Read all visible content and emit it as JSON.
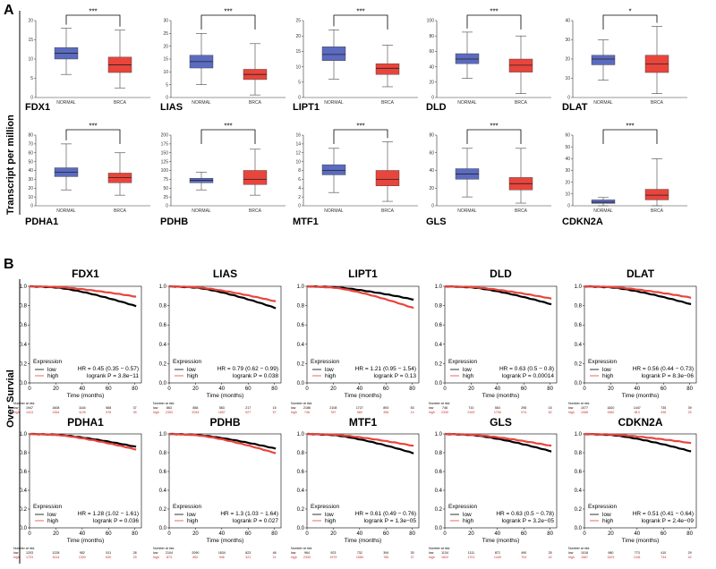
{
  "labels": {
    "panel_a": "A",
    "panel_b": "B",
    "ylabel_a": "Transcript per million",
    "ylabel_b": "Over Survial"
  },
  "colors": {
    "normal": "#5b6bbf",
    "brca": "#e8453c",
    "km_low": "#000000",
    "km_high": "#e8453c"
  },
  "chart_data": [
    {
      "type": "box",
      "panel": "A",
      "categories": [
        "NORMAL",
        "BRCA"
      ],
      "plots": [
        {
          "gene": "FDX1",
          "sig": "***",
          "yticks": [
            0,
            5,
            10,
            15,
            20
          ],
          "ylim": [
            0,
            20
          ],
          "boxes": [
            {
              "min": 6,
              "q1": 10,
              "median": 11.5,
              "q3": 13,
              "max": 18
            },
            {
              "min": 2.5,
              "q1": 6.5,
              "median": 8.5,
              "q3": 10.5,
              "max": 17.5
            }
          ]
        },
        {
          "gene": "LIAS",
          "sig": "***",
          "yticks": [
            0,
            5,
            10,
            15,
            20,
            25,
            30
          ],
          "ylim": [
            0,
            30
          ],
          "boxes": [
            {
              "min": 5,
              "q1": 11.5,
              "median": 14,
              "q3": 16.5,
              "max": 25
            },
            {
              "min": 1,
              "q1": 7,
              "median": 9,
              "q3": 11,
              "max": 21
            }
          ]
        },
        {
          "gene": "LIPT1",
          "sig": "***",
          "yticks": [
            0,
            5,
            10,
            15,
            20,
            25
          ],
          "ylim": [
            0,
            25
          ],
          "boxes": [
            {
              "min": 6,
              "q1": 12,
              "median": 14,
              "q3": 16.5,
              "max": 22
            },
            {
              "min": 3.5,
              "q1": 7.5,
              "median": 9.5,
              "q3": 11,
              "max": 17
            }
          ]
        },
        {
          "gene": "DLD",
          "sig": "***",
          "yticks": [
            0,
            20,
            40,
            60,
            80,
            100
          ],
          "ylim": [
            0,
            100
          ],
          "boxes": [
            {
              "min": 25,
              "q1": 44,
              "median": 50,
              "q3": 57,
              "max": 85
            },
            {
              "min": 5,
              "q1": 33,
              "median": 42,
              "q3": 50,
              "max": 80
            }
          ]
        },
        {
          "gene": "DLAT",
          "sig": "*",
          "yticks": [
            0,
            10,
            20,
            30,
            40
          ],
          "ylim": [
            0,
            40
          ],
          "boxes": [
            {
              "min": 9,
              "q1": 17,
              "median": 20,
              "q3": 22,
              "max": 30
            },
            {
              "min": 2,
              "q1": 13,
              "median": 17.5,
              "q3": 22,
              "max": 37
            }
          ]
        },
        {
          "gene": "PDHA1",
          "sig": "***",
          "yticks": [
            0,
            10,
            20,
            30,
            40,
            50,
            60,
            70,
            80
          ],
          "ylim": [
            0,
            80
          ],
          "boxes": [
            {
              "min": 18,
              "q1": 33,
              "median": 38,
              "q3": 43,
              "max": 70
            },
            {
              "min": 12,
              "q1": 26,
              "median": 32,
              "q3": 37,
              "max": 60
            }
          ]
        },
        {
          "gene": "PDHB",
          "sig": "***",
          "yticks": [
            0,
            25,
            50,
            75,
            100,
            125,
            150,
            175,
            200
          ],
          "ylim": [
            0,
            200
          ],
          "boxes": [
            {
              "min": 45,
              "q1": 65,
              "median": 72,
              "q3": 78,
              "max": 95
            },
            {
              "min": 30,
              "q1": 60,
              "median": 75,
              "q3": 100,
              "max": 160
            }
          ]
        },
        {
          "gene": "MTF1",
          "sig": "***",
          "yticks": [
            0,
            2,
            4,
            6,
            8,
            10,
            12,
            14,
            16
          ],
          "ylim": [
            0,
            16
          ],
          "boxes": [
            {
              "min": 3,
              "q1": 7,
              "median": 8,
              "q3": 9.3,
              "max": 13
            },
            {
              "min": 1,
              "q1": 4.5,
              "median": 6,
              "q3": 8,
              "max": 14.5
            }
          ]
        },
        {
          "gene": "GLS",
          "sig": "***",
          "yticks": [
            0,
            20,
            40,
            60,
            80
          ],
          "ylim": [
            0,
            80
          ],
          "boxes": [
            {
              "min": 10,
              "q1": 30,
              "median": 36,
              "q3": 42,
              "max": 65
            },
            {
              "min": 3,
              "q1": 18,
              "median": 25,
              "q3": 32,
              "max": 65
            }
          ]
        },
        {
          "gene": "CDKN2A",
          "sig": "***",
          "yticks": [
            0,
            10,
            20,
            30,
            40,
            50,
            60
          ],
          "ylim": [
            0,
            60
          ],
          "boxes": [
            {
              "min": 0,
              "q1": 2,
              "median": 3,
              "q3": 5,
              "max": 7
            },
            {
              "min": 0,
              "q1": 5,
              "median": 9,
              "q3": 14,
              "max": 40
            }
          ]
        }
      ]
    },
    {
      "type": "line",
      "panel": "B",
      "xlabel": "Time (months)",
      "xticks": [
        0,
        20,
        40,
        60,
        80
      ],
      "yticks": [
        "0.0",
        "0.2",
        "0.4",
        "0.6",
        "0.8",
        "1.0"
      ],
      "xlim": [
        0,
        85
      ],
      "ylim": [
        0,
        1
      ],
      "legend_title": "Expression",
      "series_names": [
        "low",
        "high"
      ],
      "risk_header": "Number at risk",
      "plots": [
        {
          "gene": "FDX1",
          "hr": "HR = 0.45 (0.35 − 0.57)",
          "logrank": "logrank P = 3.8e−11",
          "low_end": 0.79,
          "high_end": 0.89,
          "risk_low": [
            "1947",
            "1608",
            "1164",
            "568",
            "37"
          ],
          "risk_high": [
            "1413",
            "1364",
            "1126",
            "576",
            "35"
          ]
        },
        {
          "gene": "LIAS",
          "hr": "HR = 0.79 (0.62 − 0.99)",
          "logrank": "logrank P = 0.038",
          "low_end": 0.77,
          "high_end": 0.84,
          "risk_low": [
            "863",
            "858",
            "583",
            "217",
            "15"
          ],
          "risk_high": [
            "2353",
            "2044",
            "1657",
            "927",
            "57"
          ]
        },
        {
          "gene": "LIPT1",
          "hr": "HR = 1.21 (0.95 − 1.54)",
          "logrank": "logrank P = 0.13",
          "low_end": 0.86,
          "high_end": 0.77,
          "risk_low": [
            "2186",
            "2108",
            "1727",
            "893",
            "53"
          ],
          "risk_high": [
            "746",
            "787",
            "580",
            "356",
            "14"
          ]
        },
        {
          "gene": "DLD",
          "hr": "HR = 0.63 (0.5 − 0.8)",
          "logrank": "logrank P = 0.00014",
          "low_end": 0.81,
          "high_end": 0.87,
          "risk_low": [
            "746",
            "710",
            "554",
            "295",
            "15"
          ],
          "risk_high": [
            "2330",
            "2163",
            "1755",
            "974",
            "62"
          ]
        },
        {
          "gene": "DLAT",
          "hr": "HR = 0.56 (0.44 − 0.73)",
          "logrank": "logrank P = 8.3e−06",
          "low_end": 0.81,
          "high_end": 0.88,
          "risk_low": [
            "1077",
            "1820",
            "1447",
            "735",
            "39"
          ],
          "risk_high": [
            "1068",
            "1582",
            "813",
            "436",
            "25"
          ]
        },
        {
          "gene": "PDHA1",
          "hr": "HR = 1.28 (1.02 − 1.61)",
          "logrank": "logrank P = 0.036",
          "low_end": 0.86,
          "high_end": 0.83,
          "risk_low": [
            "1203",
            "1228",
            "952",
            "511",
            "28"
          ],
          "risk_high": [
            "1723",
            "1614",
            "1300",
            "630",
            "39"
          ]
        },
        {
          "gene": "PDHB",
          "hr": "HR = 1.3 (1.03 − 1.64)",
          "logrank": "logrank P = 0.027",
          "low_end": 0.84,
          "high_end": 0.79,
          "risk_low": [
            "2104",
            "2090",
            "1634",
            "823",
            "46"
          ],
          "risk_high": [
            "873",
            "852",
            "946",
            "321",
            "21"
          ]
        },
        {
          "gene": "MTF1",
          "hr": "HR = 0.61 (0.49 − 0.76)",
          "logrank": "logrank P = 1.3e−05",
          "low_end": 0.79,
          "high_end": 0.87,
          "risk_low": [
            "964",
            "923",
            "732",
            "394",
            "30"
          ],
          "risk_high": [
            "2330",
            "1979",
            "1589",
            "785",
            "37"
          ]
        },
        {
          "gene": "GLS",
          "hr": "HR = 0.63 (0.5 − 0.78)",
          "logrank": "logrank P = 3.2e−05",
          "low_end": 0.81,
          "high_end": 0.87,
          "risk_low": [
            "1134",
            "1111",
            "872",
            "490",
            "25"
          ],
          "risk_high": [
            "1622",
            "1701",
            "1449",
            "704",
            "42"
          ]
        },
        {
          "gene": "CDKN2A",
          "hr": "HR = 0.51 (0.41 − 0.64)",
          "logrank": "logrank P = 2.4e−09",
          "low_end": 0.81,
          "high_end": 0.9,
          "risk_low": [
            "1018",
            "980",
            "773",
            "410",
            "29"
          ],
          "risk_high": [
            "1567",
            "1523",
            "1341",
            "734",
            "42"
          ]
        }
      ]
    }
  ]
}
